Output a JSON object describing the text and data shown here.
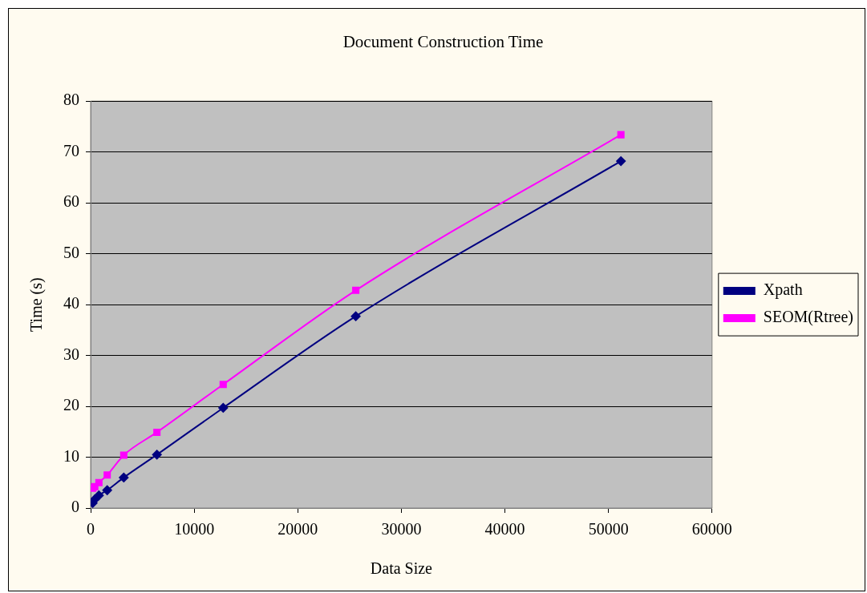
{
  "chart_data": {
    "type": "line",
    "title": "Document Construction Time",
    "xlabel": "Data Size",
    "ylabel": "Time (s)",
    "x": [
      200,
      400,
      800,
      1600,
      3200,
      6400,
      12800,
      25600,
      51200
    ],
    "series": [
      {
        "name": "Xpath",
        "color": "#000080",
        "marker": "diamond",
        "values": [
          1.0,
          1.7,
          2.5,
          3.5,
          6.0,
          10.5,
          19.7,
          37.7,
          68.2
        ]
      },
      {
        "name": "SEOM(Rtree)",
        "color": "#ff00ff",
        "marker": "square",
        "values": [
          3.9,
          4.2,
          5.0,
          6.5,
          10.4,
          14.9,
          24.3,
          42.8,
          73.4
        ]
      }
    ],
    "xlim": [
      0,
      60000
    ],
    "xticks": [
      0,
      10000,
      20000,
      30000,
      40000,
      50000,
      60000
    ],
    "ylim": [
      0,
      80
    ],
    "yticks": [
      0,
      10,
      20,
      30,
      40,
      50,
      60,
      70,
      80
    ],
    "grid": "y",
    "legend": "right"
  }
}
